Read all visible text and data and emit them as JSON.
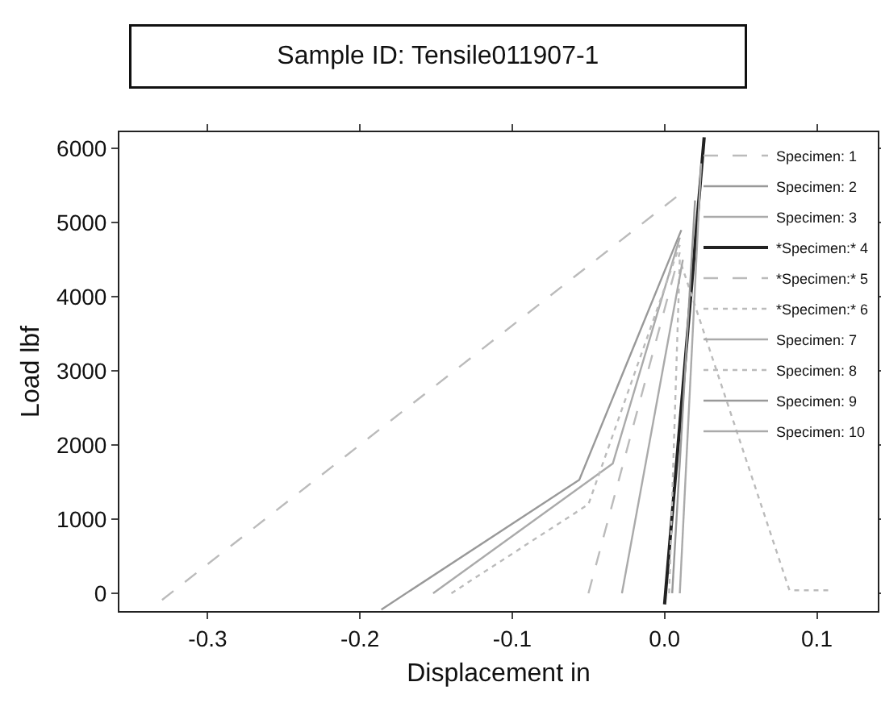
{
  "chart_data": {
    "type": "line",
    "title": "Sample ID: Tensile011907-1",
    "xlabel": "Displacement in",
    "ylabel": "Load lbf",
    "xlim": [
      -0.358,
      0.14
    ],
    "xticks": [
      -0.3,
      -0.2,
      -0.1,
      {
        "value": 0,
        "label": "0.0"
      },
      0.1
    ],
    "ylim": [
      -240,
      6220
    ],
    "yticks": [
      0,
      1000,
      2000,
      3000,
      4000,
      5000,
      6000
    ],
    "grid": false,
    "legend": "top right",
    "marker": "none",
    "series": [
      {
        "name": "Specimen: 1",
        "color": "#bbbbbb",
        "line_style": "dashed",
        "x": [
          -0.33,
          0.011
        ],
        "values": [
          -90,
          5400
        ]
      },
      {
        "name": "Specimen: 2",
        "color": "#999999",
        "line_style": "solid",
        "x": [
          -0.186,
          -0.056,
          0.011
        ],
        "values": [
          -220,
          1530,
          4900
        ]
      },
      {
        "name": "Specimen: 3",
        "color": "#aaaaaa",
        "line_style": "solid",
        "x": [
          -0.152,
          -0.034,
          0.01
        ],
        "values": [
          0,
          1750,
          4800
        ]
      },
      {
        "name": "*Specimen:* 4",
        "color": "#222222",
        "line_style": "solid",
        "x": [
          0,
          0.026
        ],
        "values": [
          -150,
          6150
        ]
      },
      {
        "name": "*Specimen:* 5",
        "color": "#bbbbbb",
        "line_style": "dashed",
        "x": [
          -0.05,
          0.01
        ],
        "values": [
          0,
          4600
        ]
      },
      {
        "name": "*Specimen:* 6",
        "color": "#bbbbbb",
        "line_style": "dotted",
        "x": [
          0.003,
          0.01,
          0.082,
          0.11
        ],
        "values": [
          0,
          4500,
          40,
          40
        ]
      },
      {
        "name": "Specimen: 7",
        "color": "#aaaaaa",
        "line_style": "solid",
        "x": [
          -0.028,
          0.012
        ],
        "values": [
          0,
          4500
        ]
      },
      {
        "name": "Specimen: 8",
        "color": "#bbbbbb",
        "line_style": "dotted",
        "x": [
          -0.14,
          -0.05,
          0.01
        ],
        "values": [
          0,
          1200,
          4700
        ]
      },
      {
        "name": "Specimen: 9",
        "color": "#999999",
        "line_style": "solid",
        "x": [
          0.005,
          0.02
        ],
        "values": [
          0,
          5300
        ]
      },
      {
        "name": "Specimen: 10",
        "color": "#aaaaaa",
        "line_style": "solid",
        "x": [
          0.01,
          0.024
        ],
        "values": [
          0,
          5800
        ]
      }
    ]
  }
}
